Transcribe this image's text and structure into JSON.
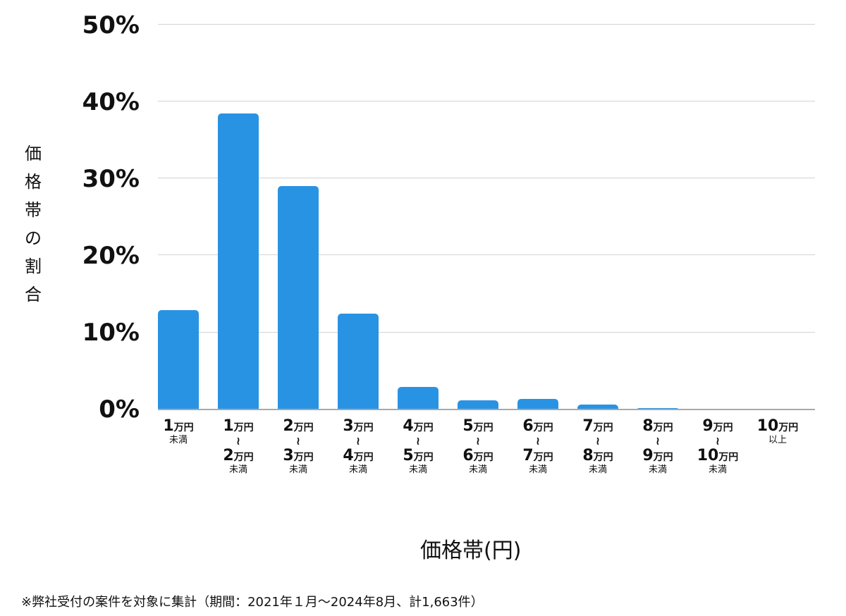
{
  "chart_data": {
    "type": "bar",
    "title": "",
    "xlabel": "価格帯(円)",
    "ylabel": "価格帯の割合",
    "ylim": [
      0,
      50
    ],
    "yticks": [
      "0%",
      "10%",
      "20%",
      "30%",
      "40%",
      "50%"
    ],
    "grid": true,
    "legend": null,
    "color": "#2993e3",
    "categories": [
      "1万円未満",
      "1万円〜2万円未満",
      "2万円〜3万円未満",
      "3万円〜4万円未満",
      "4万円〜5万円未満",
      "5万円〜6万円未満",
      "6万円〜7万円未満",
      "7万円〜8万円未満",
      "8万円〜9万円未満",
      "9万円〜10万円未満",
      "10万円以上"
    ],
    "values": [
      12.9,
      38.5,
      29.0,
      12.5,
      2.9,
      1.2,
      1.4,
      0.6,
      0.2,
      0.1,
      0.1
    ],
    "unit": "%",
    "note": "※弊社受付の案件を対象に集計（期間：2021年１月〜2024年8月、計1,663件）"
  },
  "axis": {
    "y_title_chars": [
      "価",
      "格",
      "帯",
      "の",
      "割",
      "合"
    ],
    "y_ticks": [
      "50%",
      "40%",
      "30%",
      "20%",
      "10%",
      "0%"
    ],
    "x_title": "価格帯(円)"
  },
  "labels": [
    {
      "top_num": "1",
      "top_unit": "万円",
      "tilde": "",
      "bot_num": "",
      "bot_unit": "",
      "sub": "未満"
    },
    {
      "top_num": "1",
      "top_unit": "万円",
      "tilde": "〜",
      "bot_num": "2",
      "bot_unit": "万円",
      "sub": "未満"
    },
    {
      "top_num": "2",
      "top_unit": "万円",
      "tilde": "〜",
      "bot_num": "3",
      "bot_unit": "万円",
      "sub": "未満"
    },
    {
      "top_num": "3",
      "top_unit": "万円",
      "tilde": "〜",
      "bot_num": "4",
      "bot_unit": "万円",
      "sub": "未満"
    },
    {
      "top_num": "4",
      "top_unit": "万円",
      "tilde": "〜",
      "bot_num": "5",
      "bot_unit": "万円",
      "sub": "未満"
    },
    {
      "top_num": "5",
      "top_unit": "万円",
      "tilde": "〜",
      "bot_num": "6",
      "bot_unit": "万円",
      "sub": "未満"
    },
    {
      "top_num": "6",
      "top_unit": "万円",
      "tilde": "〜",
      "bot_num": "7",
      "bot_unit": "万円",
      "sub": "未満"
    },
    {
      "top_num": "7",
      "top_unit": "万円",
      "tilde": "〜",
      "bot_num": "8",
      "bot_unit": "万円",
      "sub": "未満"
    },
    {
      "top_num": "8",
      "top_unit": "万円",
      "tilde": "〜",
      "bot_num": "9",
      "bot_unit": "万円",
      "sub": "未満"
    },
    {
      "top_num": "9",
      "top_unit": "万円",
      "tilde": "〜",
      "bot_num": "10",
      "bot_unit": "万円",
      "sub": "未満"
    },
    {
      "top_num": "10",
      "top_unit": "万円",
      "tilde": "",
      "bot_num": "",
      "bot_unit": "",
      "sub": "以上"
    }
  ],
  "footnote": "※弊社受付の案件を対象に集計（期間：2021年１月〜2024年8月、計1,663件）"
}
